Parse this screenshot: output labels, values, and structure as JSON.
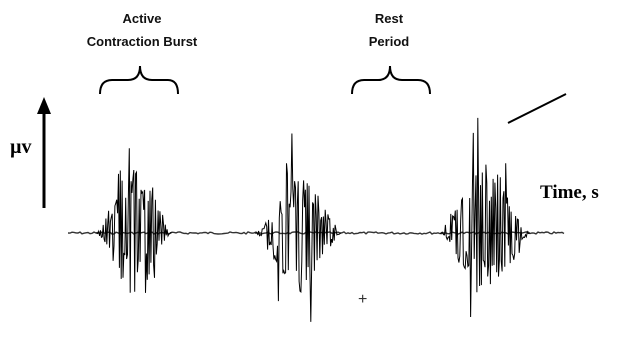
{
  "labels": {
    "burst_line1": "Active",
    "burst_line2": "Contraction Burst",
    "rest_line1": "Rest",
    "rest_line2": "Period",
    "y_axis": "µv",
    "x_axis": "Time, s",
    "marker": "+"
  },
  "colors": {
    "signal": "#000000",
    "baseline": "#333333",
    "background": "#ffffff"
  },
  "icons": {
    "y_axis_arrow": "up-arrow-icon",
    "burst_bracket": "curly-brace-icon",
    "rest_bracket": "curly-brace-icon"
  }
}
